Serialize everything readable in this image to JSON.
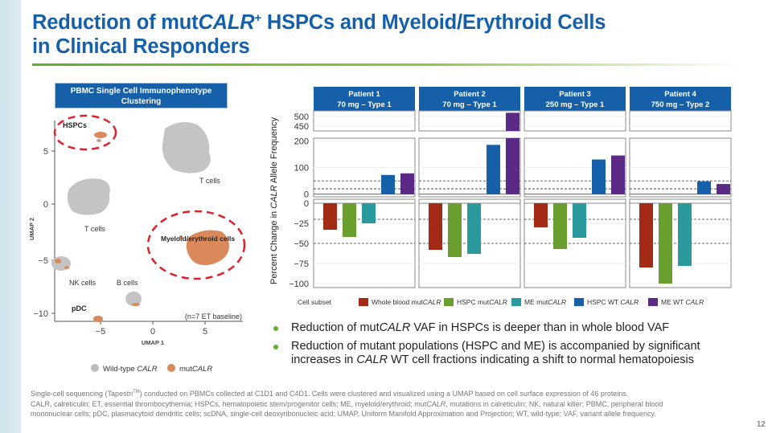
{
  "slide": {
    "title_line1_pre": "Reduction of mut",
    "title_line1_italic": "CALR",
    "title_line1_sup": "+",
    "title_line1_post": " HSPCs and Myeloid/Erythroid Cells",
    "title_line2": "in Clinical Responders",
    "page_number": "12"
  },
  "umap": {
    "header": "PBMC Single Cell Immunophenotype Clustering",
    "xlabel": "UMAP 1",
    "ylabel": "UMAP 2",
    "xticks": [
      "−5",
      "0",
      "5"
    ],
    "yticks": [
      "5",
      "0",
      "−5",
      "−10"
    ],
    "labels": {
      "hspcs": "HSPCs",
      "t_cells_top": "T cells",
      "t_cells_left": "T cells",
      "myeloid": "Myeloid/erythroid cells",
      "nk_cells": "NK cells",
      "b_cells": "B cells",
      "pdc": "pDC",
      "note": "(n=7 ET baseline)"
    },
    "legend": {
      "wild_type_pre": "Wild-type ",
      "wild_type_italic": "CALR",
      "mut_pre": "mut",
      "mut_italic": "CALR"
    },
    "colors": {
      "wild_type": "#bdbdbd",
      "mut": "#d9895a",
      "circle": "#e0202a"
    }
  },
  "chart_data": {
    "type": "bar",
    "ylabel_pre": "Percent Change in ",
    "ylabel_italic": "CALR",
    "ylabel_post": " Allele Frequency",
    "panels": [
      {
        "title": "Patient 1",
        "subtitle": "70 mg – Type 1"
      },
      {
        "title": "Patient 2",
        "subtitle": "70 mg – Type 1"
      },
      {
        "title": "Patient 3",
        "subtitle": "250 mg – Type 1"
      },
      {
        "title": "Patient 4",
        "subtitle": "750 mg – Type 2"
      }
    ],
    "upper_axis": {
      "break_segment_ticks": [
        "500",
        "450"
      ],
      "break_range": [
        425,
        530
      ],
      "main_ticks": [
        "200",
        "100",
        "0"
      ],
      "main_range": [
        -10,
        210
      ],
      "reference_lines": [
        20,
        50
      ]
    },
    "lower_axis": {
      "ticks": [
        "0",
        "−25",
        "−50",
        "−75",
        "−100"
      ],
      "range": [
        -105,
        0
      ],
      "reference_lines": [
        -20,
        -50
      ]
    },
    "legend_title": "Cell subset",
    "series": [
      {
        "name_pre": "Whole blood mut",
        "name_italic": "CALR",
        "color": "#a32a14",
        "values": [
          -33,
          -58,
          -30,
          -80
        ]
      },
      {
        "name_pre": "HSPC mut",
        "name_italic": "CALR",
        "color": "#6a9e2f",
        "values": [
          -42,
          -67,
          -57,
          -100
        ]
      },
      {
        "name_pre": "ME mut",
        "name_italic": "CALR",
        "color": "#2a9a9c",
        "values": [
          -25,
          -63,
          -43,
          -78
        ]
      },
      {
        "name_pre": "HSPC WT ",
        "name_italic": "CALR",
        "color": "#1560a8",
        "values": [
          72,
          185,
          130,
          48
        ]
      },
      {
        "name_pre": "ME WT ",
        "name_italic": "CALR",
        "color": "#5a2a86",
        "values": [
          78,
          520,
          145,
          38
        ]
      }
    ]
  },
  "bullets": [
    {
      "pre": "Reduction of mut",
      "italic": "CALR",
      "post": " VAF in HSPCs is deeper than in whole blood VAF"
    },
    {
      "line1": "Reduction of mutant populations (HSPC and ME) is accompanied by significant",
      "line2_pre": "increases in ",
      "line2_italic": "CALR",
      "line2_post": " WT cell fractions indicating a shift to normal hematopoiesis"
    }
  ],
  "footnote": {
    "line1_pre": "Single-cell sequencing (Tapestri",
    "line1_sup": "TM",
    "line1_post": ") conducted on PBMCs collected at C1D1 and C4D1. Cells were clustered and visualized using a UMAP based on cell surface expression of 46 proteins.",
    "line2_pre": "CALR, calreticulin; ET, essential thrombocythemia; HSPCs, hematopoietic stem/progenitor cells; ME, myeloid/erythroid; mut",
    "line2_italic": "CALR",
    "line2_post": ", mutations in calreticulin; NK, natural killer; PBMC, peripheral blood",
    "line3": "mononuclear cells; pDC, plasmacytoid dendritic cells; scDNA, single-cell deoxyribonucleic acid; UMAP, Uniform Manifold Approximation and Projection; WT, wild-type; VAF, variant allele frequency."
  }
}
